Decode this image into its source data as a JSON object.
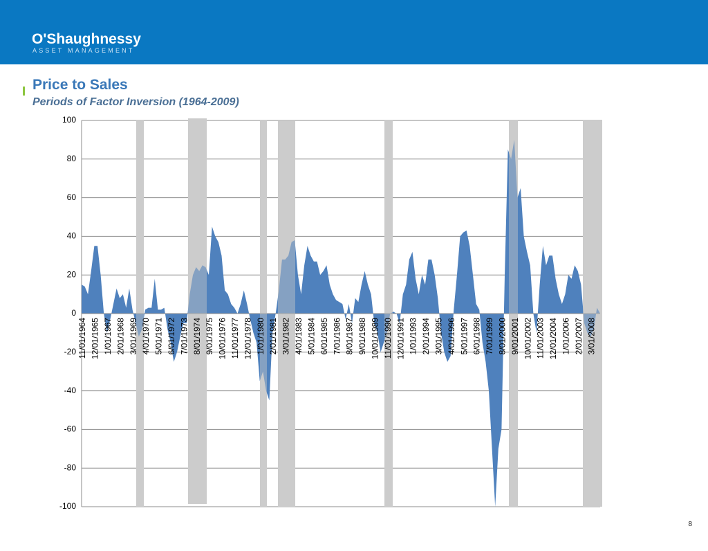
{
  "header": {
    "logo": "O'Shaughnessy",
    "tagline": "ASSET MANAGEMENT"
  },
  "page_number": "8",
  "chart_data": {
    "type": "area",
    "title": "Price to Sales",
    "subtitle": "Periods of Factor Inversion (1964-2009)",
    "color": "#4f81bd",
    "ylim": [
      -100,
      100
    ],
    "yticks": [
      -100,
      -80,
      -60,
      -40,
      -20,
      0,
      20,
      40,
      60,
      80,
      100
    ],
    "grid": true,
    "categories": [
      "11/01/1964",
      null,
      null,
      null,
      "12/01/1965",
      null,
      null,
      null,
      "1/01/1967",
      null,
      null,
      null,
      "2/01/1968",
      null,
      null,
      null,
      "3/01/1969",
      null,
      null,
      null,
      "4/01/1970",
      null,
      null,
      null,
      "5/01/1971",
      null,
      null,
      null,
      "6/01/1972",
      null,
      null,
      null,
      "7/01/1973",
      null,
      null,
      null,
      "8/01/1974",
      null,
      null,
      null,
      "9/01/1975",
      null,
      null,
      null,
      "10/01/1976",
      null,
      null,
      null,
      "11/01/1977",
      null,
      null,
      null,
      "12/01/1978",
      null,
      null,
      null,
      "1/01/1980",
      null,
      null,
      null,
      "2/01/1981",
      null,
      null,
      null,
      "3/01/1982",
      null,
      null,
      null,
      "4/01/1983",
      null,
      null,
      null,
      "5/01/1984",
      null,
      null,
      null,
      "6/01/1985",
      null,
      null,
      null,
      "7/01/1986",
      null,
      null,
      null,
      "8/01/1987",
      null,
      null,
      null,
      "9/01/1988",
      null,
      null,
      null,
      "10/01/1989",
      null,
      null,
      null,
      "11/01/1990",
      null,
      null,
      null,
      "12/01/1991",
      null,
      null,
      null,
      "1/01/1993",
      null,
      null,
      null,
      "2/01/1994",
      null,
      null,
      null,
      "3/01/1995",
      null,
      null,
      null,
      "4/01/1996",
      null,
      null,
      null,
      "5/01/1997",
      null,
      null,
      null,
      "6/01/1998",
      null,
      null,
      null,
      "7/01/1999",
      null,
      null,
      null,
      "8/01/2000",
      null,
      null,
      null,
      "9/01/2001",
      null,
      null,
      null,
      "10/01/2002",
      null,
      null,
      null,
      "11/01/2003",
      null,
      null,
      null,
      "12/01/2004",
      null,
      null,
      null,
      "1/01/2006",
      null,
      null,
      null,
      "2/01/2007",
      null,
      null,
      null,
      "3/01/2008",
      null,
      null,
      null
    ],
    "values": [
      15,
      14,
      10,
      22,
      35,
      35,
      20,
      0,
      -10,
      -3,
      5,
      13,
      8,
      10,
      3,
      13,
      2,
      -5,
      -12,
      -8,
      2,
      3,
      3,
      18,
      2,
      2,
      3,
      -8,
      -15,
      -25,
      -20,
      -12,
      -5,
      -5,
      10,
      20,
      24,
      22,
      25,
      24,
      20,
      45,
      40,
      37,
      30,
      12,
      10,
      5,
      3,
      0,
      5,
      12,
      5,
      -3,
      -10,
      -15,
      -35,
      -30,
      -40,
      -45,
      -10,
      0,
      12,
      28,
      28,
      30,
      37,
      38,
      20,
      10,
      25,
      35,
      30,
      27,
      27,
      20,
      22,
      25,
      15,
      10,
      7,
      6,
      5,
      -3,
      5,
      -5,
      8,
      6,
      15,
      22,
      15,
      10,
      -5,
      -10,
      -20,
      -15,
      -10,
      0,
      1,
      0,
      -5,
      10,
      15,
      28,
      32,
      18,
      10,
      20,
      15,
      28,
      28,
      20,
      8,
      -10,
      -20,
      -25,
      -22,
      2,
      20,
      40,
      42,
      43,
      35,
      20,
      5,
      2,
      -15,
      -25,
      -40,
      -70,
      -100,
      -70,
      -60,
      20,
      85,
      80,
      90,
      60,
      65,
      40,
      32,
      25,
      0,
      -10,
      15,
      35,
      25,
      30,
      30,
      18,
      10,
      5,
      10,
      20,
      18,
      25,
      22,
      15,
      -5,
      -10,
      -12,
      -8,
      3,
      0
    ]
  }
}
